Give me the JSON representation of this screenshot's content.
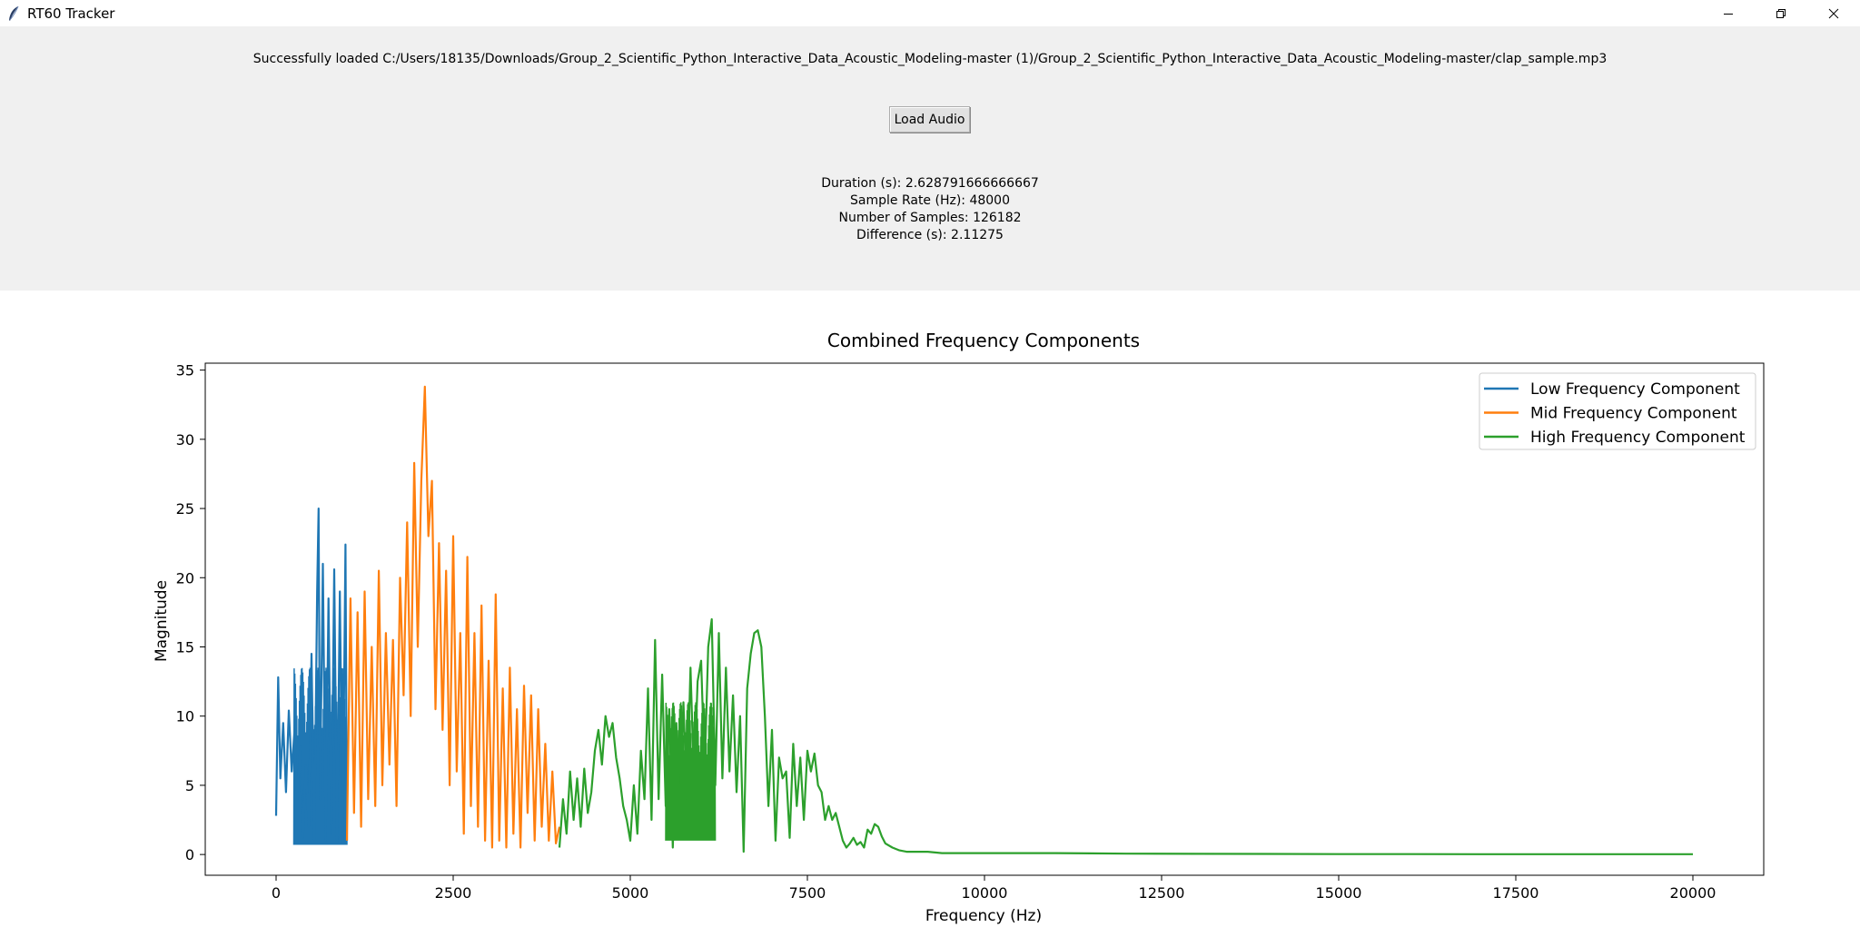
{
  "window": {
    "title": "RT60 Tracker",
    "icon": "feather-icon",
    "controls": [
      "minimize-icon",
      "restore-icon",
      "close-icon"
    ]
  },
  "status": {
    "message": "Successfully loaded C:/Users/18135/Downloads/Group_2_Scientific_Python_Interactive_Data_Acoustic_Modeling-master (1)/Group_2_Scientific_Python_Interactive_Data_Acoustic_Modeling-master/clap_sample.mp3"
  },
  "toolbar": {
    "load_label": "Load Audio"
  },
  "stats": {
    "duration": "Duration (s): 2.628791666666667",
    "sample_rate": "Sample Rate (Hz): 48000",
    "num_samples": "Number of Samples: 126182",
    "difference": "Difference (s): 2.11275"
  },
  "chart_data": {
    "type": "line",
    "title": "Combined Frequency Components",
    "xlabel": "Frequency (Hz)",
    "ylabel": "Magnitude",
    "xlim": [
      -1000,
      21000
    ],
    "ylim": [
      -1.5,
      35.5
    ],
    "xticks": [
      0,
      2500,
      5000,
      7500,
      10000,
      12500,
      15000,
      17500,
      20000
    ],
    "yticks": [
      0,
      5,
      10,
      15,
      20,
      25,
      30,
      35
    ],
    "grid": false,
    "legend_position": "top-right",
    "series": [
      {
        "name": "Low Frequency Component",
        "color": "#1f77b4",
        "x": [
          0,
          30,
          60,
          100,
          140,
          180,
          220,
          260,
          300,
          340,
          380,
          420,
          460,
          500,
          540,
          580,
          600,
          620,
          660,
          700,
          740,
          780,
          820,
          860,
          900,
          940,
          980,
          1000
        ],
        "y": [
          2.8,
          12.8,
          5.5,
          9.5,
          4.5,
          10.4,
          6.0,
          9.0,
          4.0,
          7.8,
          1.2,
          6.5,
          2.0,
          14.5,
          1.0,
          19.0,
          25.0,
          4.0,
          21.0,
          1.0,
          18.5,
          1.5,
          20.6,
          0.8,
          19.0,
          0.9,
          22.4,
          1.0
        ],
        "band": [
          [
            250,
            1000,
            0.7,
            13.5
          ]
        ]
      },
      {
        "name": "Mid Frequency Component",
        "color": "#ff7f0e",
        "x": [
          1000,
          1050,
          1100,
          1150,
          1200,
          1250,
          1300,
          1350,
          1400,
          1450,
          1500,
          1550,
          1600,
          1650,
          1700,
          1750,
          1800,
          1850,
          1900,
          1950,
          2000,
          2050,
          2100,
          2150,
          2200,
          2250,
          2300,
          2350,
          2400,
          2450,
          2500,
          2550,
          2600,
          2650,
          2700,
          2750,
          2800,
          2850,
          2900,
          2950,
          3000,
          3050,
          3100,
          3150,
          3200,
          3250,
          3300,
          3350,
          3400,
          3450,
          3500,
          3550,
          3600,
          3650,
          3700,
          3750,
          3800,
          3850,
          3900,
          3950,
          4000
        ],
        "y": [
          1.0,
          18.5,
          3.0,
          17.5,
          2.0,
          19.0,
          4.0,
          15.0,
          3.5,
          20.5,
          5.0,
          16.0,
          6.5,
          15.5,
          3.5,
          20.0,
          11.5,
          24.0,
          10.0,
          28.3,
          15.0,
          27.0,
          33.8,
          23.0,
          27.0,
          10.5,
          22.5,
          9.0,
          20.5,
          5.0,
          23.0,
          6.0,
          16.0,
          1.5,
          21.5,
          3.5,
          16.0,
          2.0,
          18.0,
          1.0,
          14.0,
          0.5,
          18.8,
          1.0,
          12.0,
          0.5,
          13.5,
          1.5,
          10.5,
          0.5,
          12.2,
          3.0,
          11.5,
          1.0,
          10.5,
          2.0,
          8.0,
          1.0,
          6.0,
          0.8,
          2.0
        ]
      },
      {
        "name": "High Frequency Component",
        "color": "#2ca02c",
        "x": [
          4000,
          4050,
          4100,
          4150,
          4200,
          4250,
          4300,
          4350,
          4400,
          4450,
          4500,
          4550,
          4600,
          4650,
          4700,
          4750,
          4800,
          4850,
          4900,
          4950,
          5000,
          5050,
          5100,
          5150,
          5200,
          5250,
          5300,
          5350,
          5400,
          5450,
          5500,
          5550,
          5600,
          5650,
          5700,
          5750,
          5800,
          5850,
          5900,
          5950,
          6000,
          6050,
          6100,
          6150,
          6200,
          6250,
          6300,
          6350,
          6400,
          6450,
          6500,
          6550,
          6600,
          6650,
          6700,
          6750,
          6800,
          6850,
          6900,
          6950,
          7000,
          7050,
          7100,
          7150,
          7200,
          7250,
          7300,
          7350,
          7400,
          7450,
          7500,
          7550,
          7600,
          7650,
          7700,
          7750,
          7800,
          7850,
          7900,
          7950,
          8000,
          8050,
          8100,
          8150,
          8200,
          8250,
          8300,
          8350,
          8400,
          8450,
          8500,
          8550,
          8600,
          8700,
          8800,
          8900,
          9000,
          9200,
          9400,
          9600,
          9800,
          10000,
          10500,
          11000,
          11500,
          12000,
          13000,
          14000,
          15000,
          16000,
          17000,
          18000,
          19000,
          20000
        ],
        "y": [
          0.5,
          4.0,
          1.5,
          6.0,
          2.5,
          5.5,
          2.0,
          6.2,
          3.0,
          4.5,
          7.5,
          9.0,
          6.5,
          10.0,
          8.5,
          9.5,
          7.0,
          5.5,
          3.5,
          2.5,
          1.0,
          5.0,
          1.5,
          7.5,
          4.0,
          12.0,
          2.5,
          15.5,
          4.0,
          13.0,
          3.5,
          10.5,
          0.5,
          9.5,
          3.0,
          11.0,
          4.0,
          13.5,
          5.0,
          12.5,
          14.0,
          6.0,
          15.0,
          17.0,
          5.0,
          16.0,
          5.5,
          13.5,
          6.0,
          11.5,
          4.5,
          10.0,
          0.2,
          12.0,
          14.5,
          16.0,
          16.2,
          15.0,
          10.0,
          3.5,
          9.0,
          1.0,
          7.0,
          5.5,
          6.0,
          1.2,
          8.0,
          3.5,
          7.0,
          2.5,
          7.5,
          6.0,
          7.3,
          5.0,
          4.5,
          2.5,
          3.5,
          2.5,
          3.0,
          2.0,
          1.0,
          0.5,
          0.8,
          1.2,
          0.7,
          0.9,
          0.5,
          1.8,
          1.5,
          2.2,
          2.0,
          1.3,
          0.8,
          0.5,
          0.3,
          0.2,
          0.2,
          0.2,
          0.1,
          0.1,
          0.1,
          0.1,
          0.1,
          0.1,
          0.08,
          0.06,
          0.05,
          0.04,
          0.03,
          0.03,
          0.02,
          0.02,
          0.02,
          0.02
        ],
        "band": [
          [
            5500,
            6200,
            1.0,
            11.0
          ]
        ]
      }
    ]
  }
}
